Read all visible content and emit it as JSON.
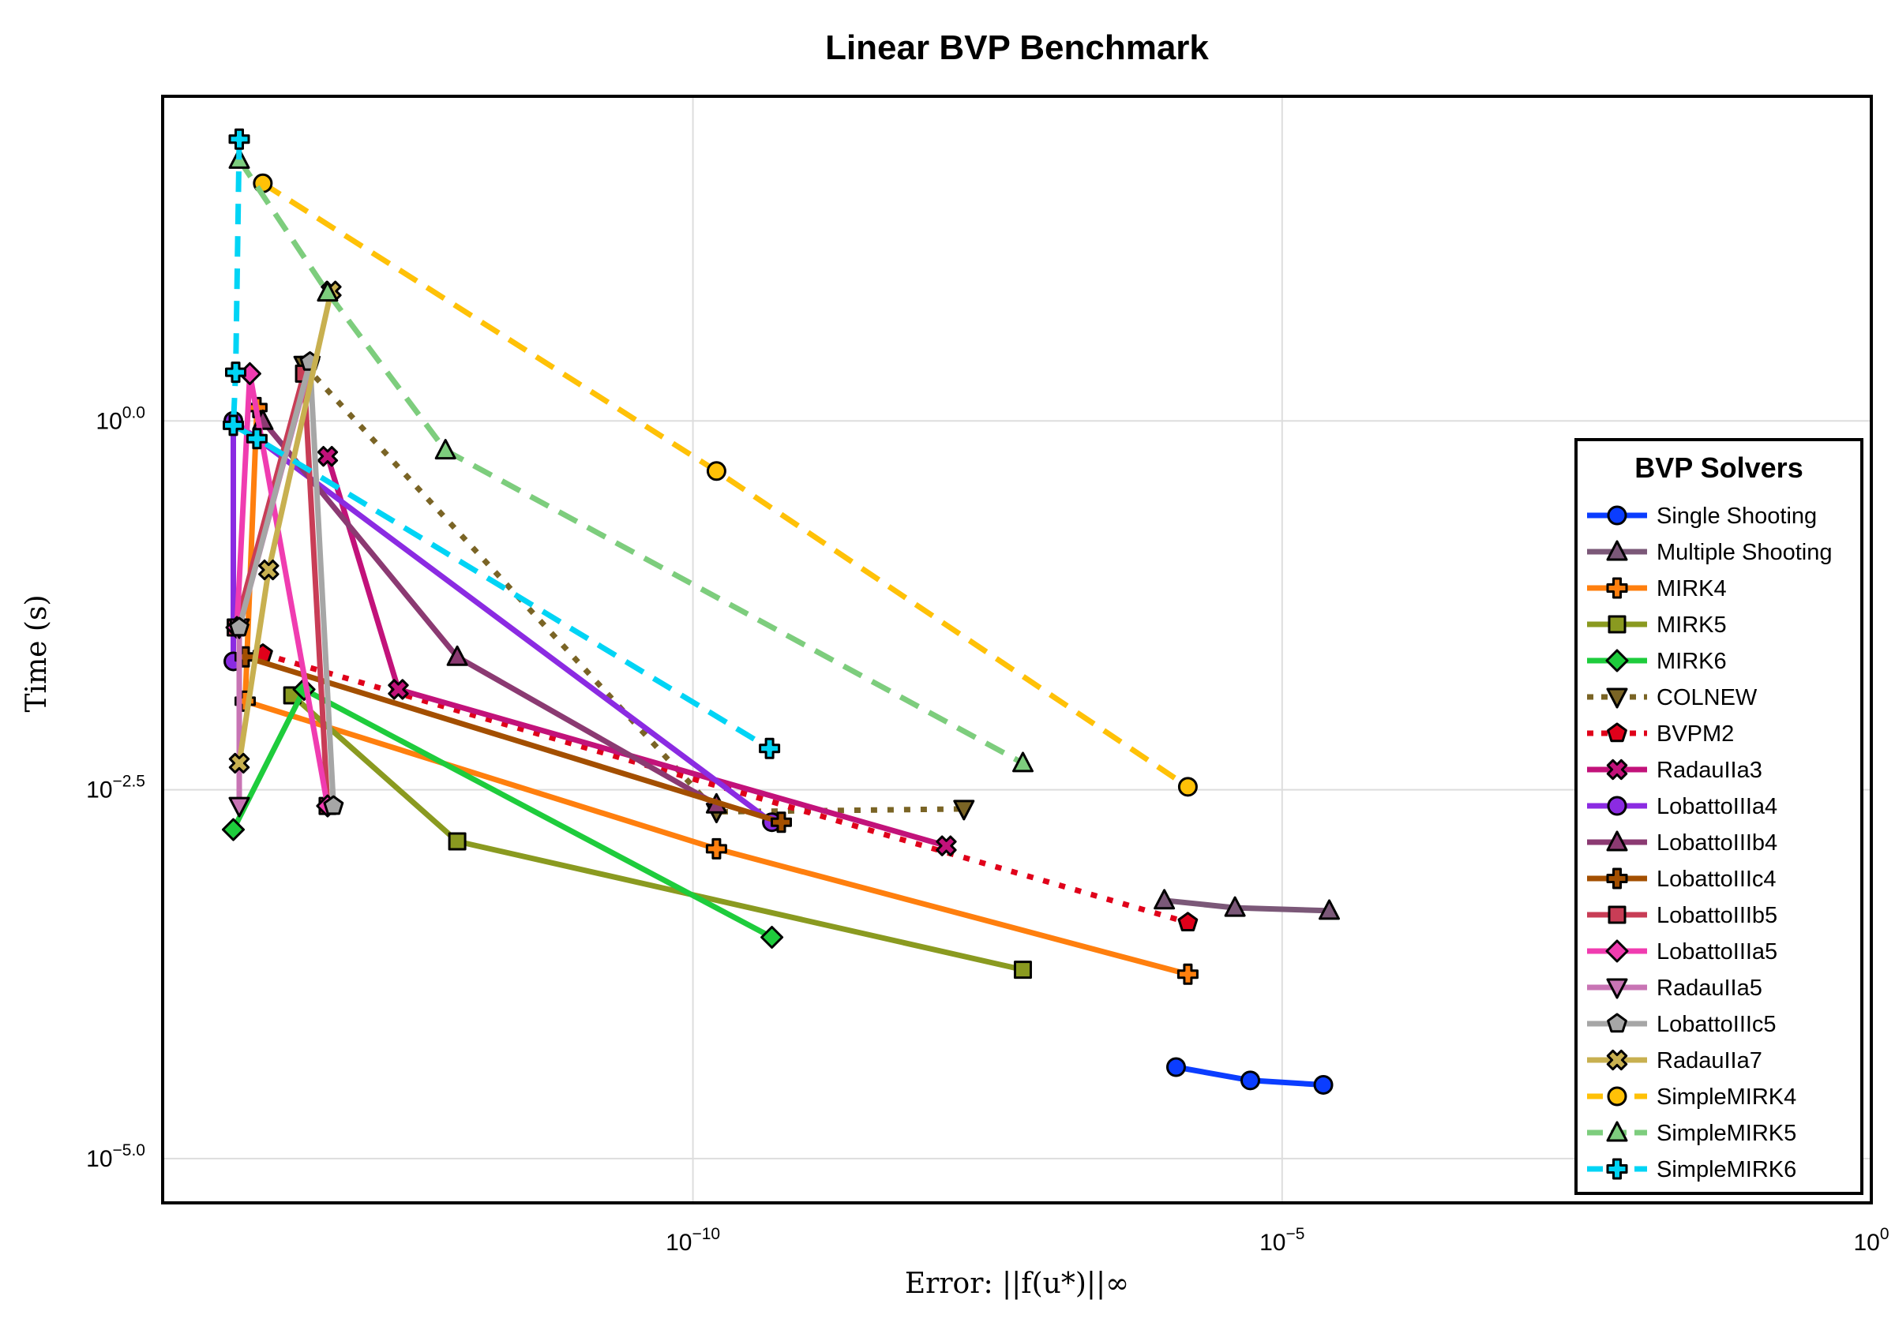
{
  "chart_data": {
    "type": "line",
    "title": "Linear BVP Benchmark",
    "xlabel": "Error: ||f(u*)||∞",
    "ylabel": "Time (s)",
    "xscale": "log10",
    "yscale": "log10",
    "xlim_exp": [
      -14.5,
      0
    ],
    "ylim_exp": [
      -5.3,
      2.2
    ],
    "xticks_exp": [
      -10,
      -5,
      0
    ],
    "yticks_exp": [
      -5.0,
      -2.5,
      0.0
    ],
    "grid": true,
    "legend": {
      "title": "BVP Solvers",
      "position": "right"
    },
    "series": [
      {
        "name": "Single Shooting",
        "color": "#0b3dff",
        "marker": "circle",
        "dash": "solid",
        "points": [
          [
            -5.9,
            -4.38
          ],
          [
            -5.27,
            -4.47
          ],
          [
            -4.65,
            -4.5
          ]
        ]
      },
      {
        "name": "Multiple Shooting",
        "color": "#7b5878",
        "marker": "triangle",
        "dash": "solid",
        "points": [
          [
            -6.0,
            -3.25
          ],
          [
            -5.4,
            -3.3
          ],
          [
            -4.6,
            -3.32
          ]
        ]
      },
      {
        "name": "MIRK4",
        "color": "#ff7f0e",
        "marker": "cross",
        "dash": "solid",
        "points": [
          [
            -13.7,
            0.09
          ],
          [
            -13.8,
            -1.9
          ],
          [
            -9.8,
            -2.9
          ],
          [
            -5.8,
            -3.75
          ]
        ]
      },
      {
        "name": "MIRK5",
        "color": "#8a9a20",
        "marker": "square",
        "dash": "solid",
        "points": [
          [
            -13.4,
            -1.86
          ],
          [
            -12.0,
            -2.85
          ],
          [
            -7.2,
            -3.72
          ]
        ]
      },
      {
        "name": "MIRK6",
        "color": "#1ecc3c",
        "marker": "diamond",
        "dash": "solid",
        "points": [
          [
            -13.9,
            -2.77
          ],
          [
            -13.3,
            -1.82
          ],
          [
            -9.33,
            -3.5
          ]
        ]
      },
      {
        "name": "COLNEW",
        "color": "#7a6425",
        "marker": "triangle-down",
        "dash": "dotted",
        "points": [
          [
            -13.3,
            0.38
          ],
          [
            -9.8,
            -2.65
          ],
          [
            -7.7,
            -2.63
          ]
        ]
      },
      {
        "name": "BVPM2",
        "color": "#e0001a",
        "marker": "pentagon",
        "dash": "dotted",
        "points": [
          [
            -13.65,
            -1.58
          ],
          [
            -5.8,
            -3.4
          ]
        ]
      },
      {
        "name": "RadauIIa3",
        "color": "#c2127a",
        "marker": "x",
        "dash": "solid",
        "points": [
          [
            -13.1,
            -0.24
          ],
          [
            -12.5,
            -1.82
          ],
          [
            -7.85,
            -2.88
          ]
        ]
      },
      {
        "name": "LobattoIIIa4",
        "color": "#8b2be2",
        "marker": "circle",
        "dash": "solid",
        "points": [
          [
            -13.9,
            -1.63
          ],
          [
            -13.9,
            0.0
          ],
          [
            -9.33,
            -2.72
          ]
        ]
      },
      {
        "name": "LobattoIIIb4",
        "color": "#8b3a72",
        "marker": "triangle",
        "dash": "solid",
        "points": [
          [
            -13.65,
            0.0
          ],
          [
            -12.0,
            -1.6
          ],
          [
            -9.8,
            -2.6
          ]
        ]
      },
      {
        "name": "LobattoIIIc4",
        "color": "#a34f00",
        "marker": "cross",
        "dash": "solid",
        "points": [
          [
            -13.8,
            -1.6
          ],
          [
            -9.25,
            -2.72
          ]
        ]
      },
      {
        "name": "LobattoIIIb5",
        "color": "#c83d56",
        "marker": "square",
        "dash": "solid",
        "points": [
          [
            -13.88,
            -1.4
          ],
          [
            -13.3,
            0.32
          ],
          [
            -13.1,
            -2.61
          ]
        ]
      },
      {
        "name": "LobattoIIIa5",
        "color": "#f03cb0",
        "marker": "diamond",
        "dash": "solid",
        "points": [
          [
            -13.87,
            -1.4
          ],
          [
            -13.76,
            0.32
          ],
          [
            -13.1,
            -2.61
          ]
        ]
      },
      {
        "name": "RadauIIa5",
        "color": "#c874b4",
        "marker": "triangle-down",
        "dash": "solid",
        "points": [
          [
            -13.85,
            -2.61
          ],
          [
            -13.85,
            -1.4
          ],
          [
            -13.25,
            0.38
          ]
        ]
      },
      {
        "name": "LobattoIIIc5",
        "color": "#a6a6a6",
        "marker": "pentagon",
        "dash": "solid",
        "points": [
          [
            -13.85,
            -1.4
          ],
          [
            -13.25,
            0.4
          ],
          [
            -13.05,
            -2.61
          ]
        ]
      },
      {
        "name": "RadauIIa7",
        "color": "#c8b050",
        "marker": "x",
        "dash": "solid",
        "points": [
          [
            -13.85,
            -2.32
          ],
          [
            -13.6,
            -1.01
          ],
          [
            -13.07,
            0.88
          ]
        ]
      },
      {
        "name": "SimpleMIRK4",
        "color": "#ffc107",
        "marker": "circle",
        "dash": "dashed",
        "points": [
          [
            -13.65,
            1.61
          ],
          [
            -9.8,
            -0.34
          ],
          [
            -5.8,
            -2.48
          ]
        ]
      },
      {
        "name": "SimpleMIRK5",
        "color": "#7dcd7d",
        "marker": "triangle",
        "dash": "dashed",
        "points": [
          [
            -13.85,
            1.77
          ],
          [
            -13.1,
            0.87
          ],
          [
            -12.1,
            -0.2
          ],
          [
            -7.2,
            -2.32
          ]
        ]
      },
      {
        "name": "SimpleMIRK6",
        "color": "#00d4f5",
        "marker": "cross",
        "dash": "dashed",
        "points": [
          [
            -13.85,
            1.91
          ],
          [
            -13.88,
            0.33
          ],
          [
            -13.9,
            -0.03
          ],
          [
            -13.7,
            -0.12
          ],
          [
            -9.35,
            -2.22
          ]
        ]
      }
    ]
  }
}
